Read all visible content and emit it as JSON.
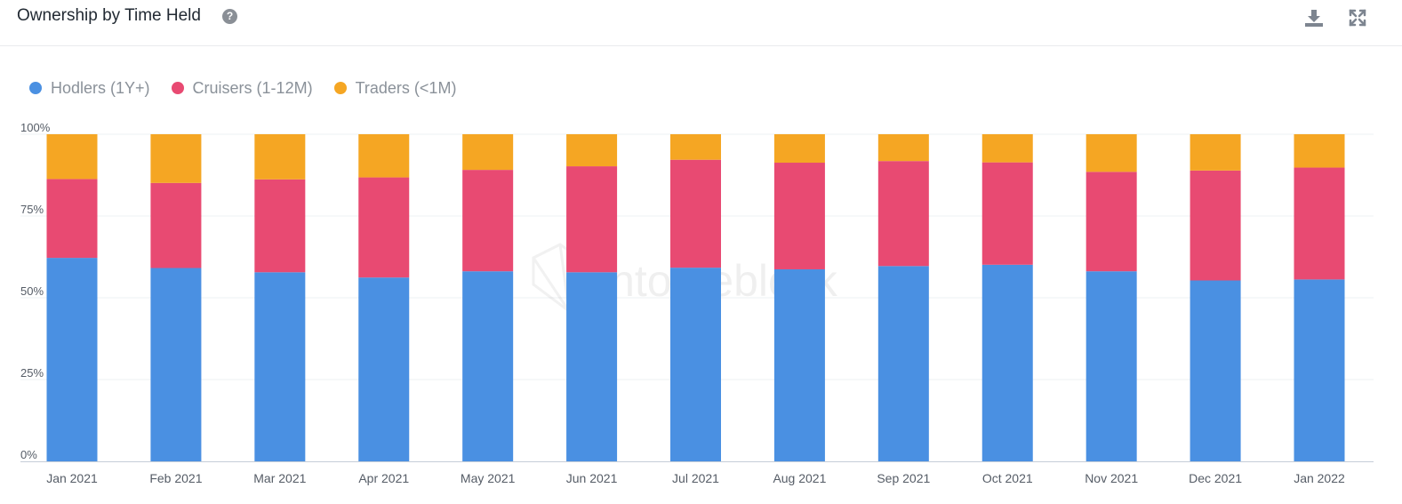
{
  "header": {
    "title": "Ownership by Time Held",
    "help_icon": "question-circle-icon",
    "tools": [
      {
        "name": "download-icon"
      },
      {
        "name": "expand-icon"
      }
    ]
  },
  "watermark": "intotheblock",
  "colors": {
    "hodlers": "#4a90e2",
    "cruisers": "#e84a72",
    "traders": "#f5a623",
    "grid": "#eef0f3",
    "axis_text": "#555c66",
    "icon": "#7d8590"
  },
  "chart_data": {
    "type": "bar",
    "stacked": true,
    "categories": [
      "Jan 2021",
      "Feb 2021",
      "Mar 2021",
      "Apr 2021",
      "May 2021",
      "Jun 2021",
      "Jul 2021",
      "Aug 2021",
      "Sep 2021",
      "Oct 2021",
      "Nov 2021",
      "Dec 2021",
      "Jan 2022"
    ],
    "series": [
      {
        "name": "Hodlers (1Y+)",
        "color": "#4a90e2",
        "values": [
          62.2,
          59.1,
          57.8,
          56.2,
          58.1,
          57.8,
          59.2,
          58.7,
          59.7,
          60.1,
          58.1,
          55.3,
          55.6
        ]
      },
      {
        "name": "Cruisers (1-12M)",
        "color": "#e84a72",
        "values": [
          24.1,
          26.0,
          28.4,
          30.6,
          31.0,
          32.4,
          33.0,
          32.6,
          32.1,
          31.3,
          30.4,
          33.6,
          34.2
        ]
      },
      {
        "name": "Traders (<1M)",
        "color": "#f5a623",
        "values": [
          13.7,
          14.9,
          13.8,
          13.2,
          10.9,
          9.8,
          7.8,
          8.7,
          8.2,
          8.6,
          11.5,
          11.1,
          10.2
        ]
      }
    ],
    "y_ticks": [
      "0%",
      "25%",
      "50%",
      "75%",
      "100%"
    ],
    "ylim": [
      0,
      100
    ],
    "grid": true,
    "legend_position": "top-left"
  }
}
